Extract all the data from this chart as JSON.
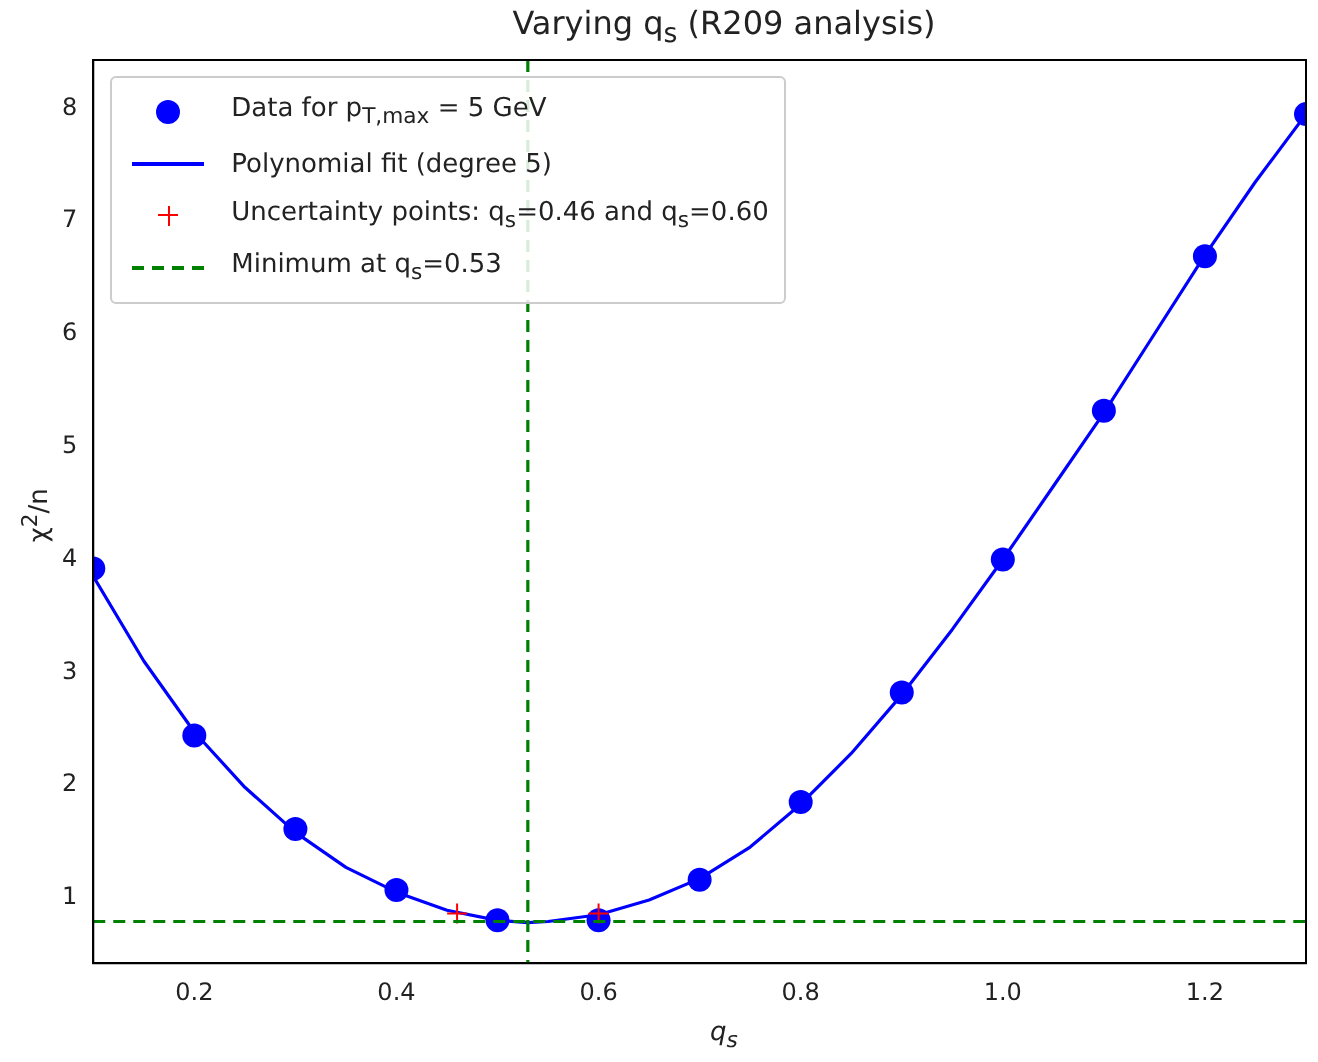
{
  "chart_data": {
    "type": "scatter",
    "title": "Varying q$_{s}$ (R209 analysis)",
    "xlabel": "q$_{s}$",
    "ylabel": "χ$^{2}$/n",
    "xlim": [
      0.1,
      1.3
    ],
    "xticks": [
      0.2,
      0.4,
      0.6,
      0.8,
      {
        "value": 1,
        "label": "1.0"
      },
      1.2
    ],
    "ylim": [
      0.42,
      8.43
    ],
    "yticks": [
      1,
      2,
      3,
      4,
      5,
      6,
      7,
      8
    ],
    "grid": false,
    "legend": "top left",
    "series": [
      {
        "name": "Data for p$_{T,max}$ = 5 GeV",
        "marker": "circle",
        "color": "#0000ff",
        "x": [
          0.1,
          0.2,
          0.3,
          0.4,
          0.5,
          0.6,
          0.7,
          0.8,
          0.9,
          1.0,
          1.1,
          1.2,
          1.3
        ],
        "values": [
          3.92,
          2.44,
          1.61,
          1.07,
          0.8,
          0.8,
          1.16,
          1.85,
          2.82,
          4.0,
          5.32,
          6.69,
          7.95
        ]
      },
      {
        "name": "Polynomial fit (degree 5)",
        "type": "line",
        "marker": "none",
        "line_style": "solid",
        "color": "#0000ff",
        "x": [
          0.1,
          0.15,
          0.2,
          0.25,
          0.3,
          0.35,
          0.4,
          0.45,
          0.5,
          0.53,
          0.55,
          0.6,
          0.65,
          0.7,
          0.75,
          0.8,
          0.85,
          0.9,
          0.95,
          1.0,
          1.05,
          1.1,
          1.15,
          1.2,
          1.25,
          1.3
        ],
        "values": [
          3.85,
          3.1,
          2.47,
          1.98,
          1.58,
          1.27,
          1.05,
          0.89,
          0.8,
          0.78,
          0.79,
          0.85,
          0.98,
          1.17,
          1.45,
          1.83,
          2.28,
          2.8,
          3.38,
          4.0,
          4.65,
          5.3,
          6.0,
          6.7,
          7.35,
          7.95
        ]
      },
      {
        "name": "Uncertainty points: q$_{s}$=0.46 and q$_{s}$=0.60",
        "marker": "cross",
        "color": "#ff0000",
        "x": [
          0.46,
          0.6
        ],
        "values": [
          0.86,
          0.86
        ]
      }
    ],
    "ref_lines": [
      {
        "axis": "x",
        "value": 0.53,
        "label": "Minimum at q$_{s}$=0.53",
        "color": "#008000",
        "line_style": "dashed"
      },
      {
        "axis": "y",
        "value": 0.79,
        "color": "#008000",
        "line_style": "dashed"
      }
    ]
  }
}
